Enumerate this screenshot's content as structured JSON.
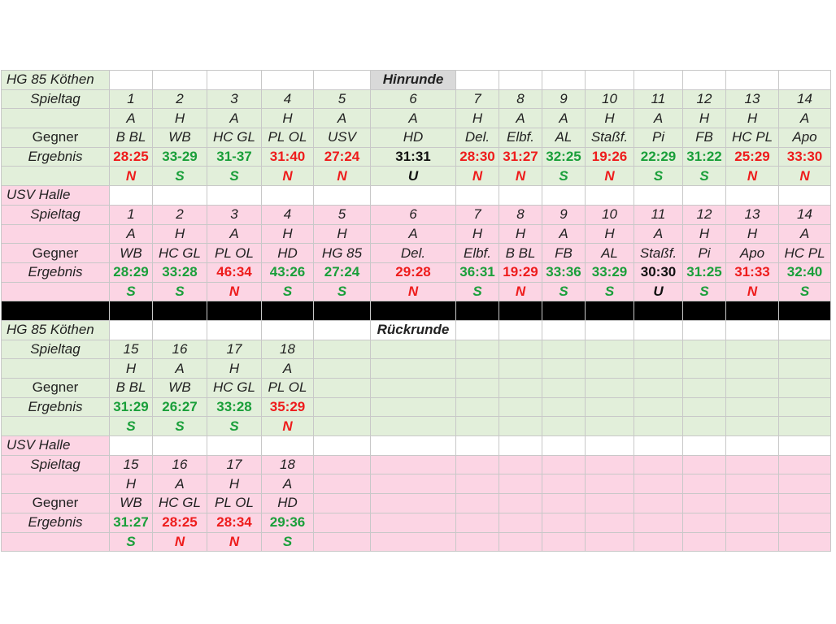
{
  "colors": {
    "green_bg": "#e2efda",
    "pink_bg": "#fcd5e4",
    "win": "#1a9f3a",
    "loss": "#ee1c1c",
    "draw": "#111111",
    "header_bg": "#d9d9d9",
    "separator": "#000000"
  },
  "labels": {
    "spieltag": "Spieltag",
    "gegner": "Gegner",
    "ergebnis": "Ergebnis"
  },
  "hinrunde": {
    "title": "Hinrunde",
    "teams": [
      {
        "name": "HG 85 Köthen",
        "color": "g",
        "spieltag": [
          "1",
          "2",
          "3",
          "4",
          "5",
          "6",
          "7",
          "8",
          "9",
          "10",
          "11",
          "12",
          "13",
          "14"
        ],
        "venue": [
          "A",
          "H",
          "A",
          "H",
          "A",
          "A",
          "H",
          "A",
          "A",
          "H",
          "A",
          "H",
          "H",
          "A"
        ],
        "gegner": [
          "B BL",
          "WB",
          "HC GL",
          "PL OL",
          "USV",
          "HD",
          "Del.",
          "Elbf.",
          "AL",
          "Staßf.",
          "Pi",
          "FB",
          "HC PL",
          "Apo"
        ],
        "ergebnis": [
          "28:25",
          "33-29",
          "31-37",
          "31:40",
          "27:24",
          "31:31",
          "28:30",
          "31:27",
          "32:25",
          "19:26",
          "22:29",
          "31:22",
          "25:29",
          "33:30"
        ],
        "ergebnis_color": [
          "loss",
          "win",
          "win",
          "loss",
          "loss",
          "draw",
          "loss",
          "loss",
          "win",
          "loss",
          "win",
          "win",
          "loss",
          "loss"
        ],
        "wl": [
          "N",
          "S",
          "S",
          "N",
          "N",
          "U",
          "N",
          "N",
          "S",
          "N",
          "S",
          "S",
          "N",
          "N"
        ]
      },
      {
        "name": "USV Halle",
        "color": "p",
        "spieltag": [
          "1",
          "2",
          "3",
          "4",
          "5",
          "6",
          "7",
          "8",
          "9",
          "10",
          "11",
          "12",
          "13",
          "14"
        ],
        "venue": [
          "A",
          "H",
          "A",
          "H",
          "H",
          "A",
          "H",
          "H",
          "A",
          "H",
          "A",
          "H",
          "H",
          "A"
        ],
        "gegner": [
          "WB",
          "HC GL",
          "PL OL",
          "HD",
          "HG 85",
          "Del.",
          "Elbf.",
          "B BL",
          "FB",
          "AL",
          "Staßf.",
          "Pi",
          "Apo",
          "HC PL"
        ],
        "ergebnis": [
          "28:29",
          "33:28",
          "46:34",
          "43:26",
          "27:24",
          "29:28",
          "36:31",
          "19:29",
          "33:36",
          "33:29",
          "30:30",
          "31:25",
          "31:33",
          "32:40"
        ],
        "ergebnis_color": [
          "win",
          "win",
          "loss",
          "win",
          "win",
          "loss",
          "win",
          "loss",
          "win",
          "win",
          "draw",
          "win",
          "loss",
          "win"
        ],
        "wl": [
          "S",
          "S",
          "N",
          "S",
          "S",
          "N",
          "S",
          "N",
          "S",
          "S",
          "U",
          "S",
          "N",
          "S"
        ]
      }
    ]
  },
  "rueckrunde": {
    "title": "Rückrunde",
    "teams": [
      {
        "name": "HG 85 Köthen",
        "color": "g",
        "spieltag": [
          "15",
          "16",
          "17",
          "18",
          "",
          "",
          "",
          "",
          "",
          "",
          "",
          "",
          "",
          ""
        ],
        "venue": [
          "H",
          "A",
          "H",
          "A",
          "",
          "",
          "",
          "",
          "",
          "",
          "",
          "",
          "",
          ""
        ],
        "gegner": [
          "B BL",
          "WB",
          "HC GL",
          "PL OL",
          "",
          "",
          "",
          "",
          "",
          "",
          "",
          "",
          "",
          ""
        ],
        "ergebnis": [
          "31:29",
          "26:27",
          "33:28",
          "35:29",
          "",
          "",
          "",
          "",
          "",
          "",
          "",
          "",
          "",
          ""
        ],
        "ergebnis_color": [
          "win",
          "win",
          "win",
          "loss",
          "",
          "",
          "",
          "",
          "",
          "",
          "",
          "",
          "",
          ""
        ],
        "wl": [
          "S",
          "S",
          "S",
          "N",
          "",
          "",
          "",
          "",
          "",
          "",
          "",
          "",
          "",
          ""
        ]
      },
      {
        "name": "USV Halle",
        "color": "p",
        "spieltag": [
          "15",
          "16",
          "17",
          "18",
          "",
          "",
          "",
          "",
          "",
          "",
          "",
          "",
          "",
          ""
        ],
        "venue": [
          "H",
          "A",
          "H",
          "A",
          "",
          "",
          "",
          "",
          "",
          "",
          "",
          "",
          "",
          ""
        ],
        "gegner": [
          "WB",
          "HC GL",
          "PL OL",
          "HD",
          "",
          "",
          "",
          "",
          "",
          "",
          "",
          "",
          "",
          ""
        ],
        "ergebnis": [
          "31:27",
          "28:25",
          "28:34",
          "29:36",
          "",
          "",
          "",
          "",
          "",
          "",
          "",
          "",
          "",
          ""
        ],
        "ergebnis_color": [
          "win",
          "loss",
          "loss",
          "win",
          "",
          "",
          "",
          "",
          "",
          "",
          "",
          "",
          "",
          ""
        ],
        "wl": [
          "S",
          "N",
          "N",
          "S",
          "",
          "",
          "",
          "",
          "",
          "",
          "",
          "",
          "",
          ""
        ]
      }
    ]
  }
}
